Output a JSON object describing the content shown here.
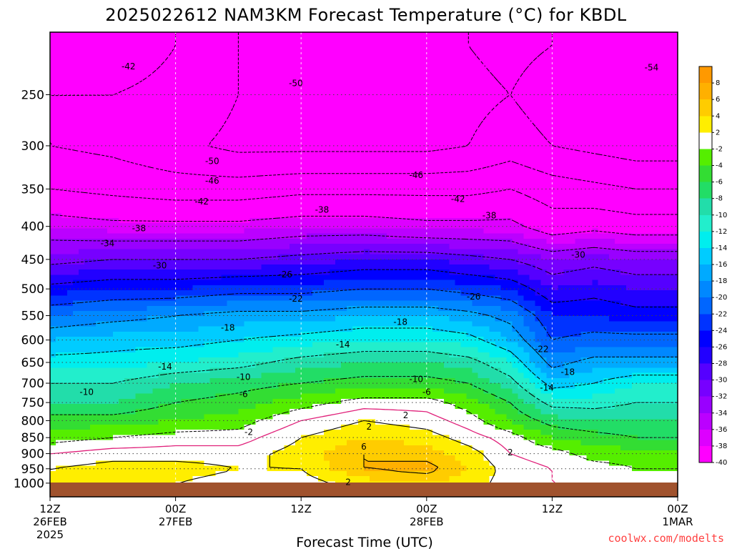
{
  "chart_data": {
    "type": "heatmap",
    "title": "2025022612 NAM3KM Forecast Temperature (°C) for KBDL",
    "xlabel": "Forecast Time (UTC)",
    "ylabel": "",
    "credit": "coolwx.com/modelts",
    "y_ticks": [
      250,
      300,
      350,
      400,
      450,
      500,
      550,
      600,
      650,
      700,
      750,
      800,
      850,
      900,
      950,
      1000
    ],
    "y_scale": "log",
    "x_ticks": [
      {
        "hour": 0,
        "line1": "12Z",
        "line2": "26FEB",
        "line3": "2025"
      },
      {
        "hour": 12,
        "line1": "00Z",
        "line2": "27FEB",
        "line3": ""
      },
      {
        "hour": 24,
        "line1": "12Z",
        "line2": "",
        "line3": ""
      },
      {
        "hour": 36,
        "line1": "00Z",
        "line2": "28FEB",
        "line3": ""
      },
      {
        "hour": 48,
        "line1": "12Z",
        "line2": "",
        "line3": ""
      },
      {
        "hour": 60,
        "line1": "00Z",
        "line2": "1MAR",
        "line3": ""
      }
    ],
    "xlim": [
      0,
      60
    ],
    "ylim": [
      200,
      1050
    ],
    "colorbar": {
      "labels": [
        "8",
        "6",
        "4",
        "2",
        "-2",
        "-4",
        "-6",
        "-8",
        "-10",
        "-12",
        "-14",
        "-16",
        "-18",
        "-20",
        "-22",
        "-24",
        "-26",
        "-28",
        "-30",
        "-32",
        "-34",
        "-36",
        "-38",
        "-40"
      ],
      "colors": [
        "#ff9900",
        "#ffb000",
        "#ffcc00",
        "#ffee00",
        "#ffffff",
        "#55ee00",
        "#33dd33",
        "#22dd66",
        "#22ddaa",
        "#22eecc",
        "#00eeee",
        "#00ccff",
        "#00aaff",
        "#0088ff",
        "#0066ff",
        "#0033ff",
        "#0000ff",
        "#2200ff",
        "#5500ff",
        "#7700ff",
        "#9900ff",
        "#bb00ff",
        "#dd00ff",
        "#ff00ff"
      ]
    },
    "profile": {
      "levels": [
        210,
        250,
        300,
        350,
        400,
        450,
        500,
        550,
        600,
        650,
        700,
        750,
        800,
        850,
        900,
        950,
        1000
      ],
      "times": [
        0,
        6,
        12,
        18,
        24,
        30,
        36,
        40,
        44,
        48,
        52,
        56,
        60
      ],
      "temps": [
        [
          -44,
          -44,
          -46,
          -50,
          -52,
          -52,
          -51,
          -50,
          -49,
          -50,
          -52,
          -54,
          -54
        ],
        [
          -46,
          -46,
          -47,
          -50,
          -52,
          -52,
          -52,
          -51,
          -50,
          -52,
          -53,
          -54,
          -54
        ],
        [
          -46,
          -47,
          -49,
          -51,
          -51,
          -51,
          -51,
          -50,
          -48,
          -50,
          -51,
          -52,
          -52
        ],
        [
          -42,
          -43,
          -44,
          -44,
          -43,
          -43,
          -43,
          -43,
          -42,
          -44,
          -45,
          -46,
          -46
        ],
        [
          -36,
          -37,
          -37,
          -37,
          -36,
          -36,
          -37,
          -37,
          -37,
          -40,
          -39,
          -40,
          -40
        ],
        [
          -31,
          -30,
          -30,
          -30,
          -29,
          -28,
          -28,
          -29,
          -30,
          -32,
          -31,
          -32,
          -32
        ],
        [
          -25,
          -24,
          -24,
          -23,
          -23,
          -22,
          -22,
          -23,
          -24,
          -28,
          -27,
          -28,
          -28
        ],
        [
          -20,
          -19,
          -18,
          -17,
          -17,
          -16,
          -16,
          -17,
          -19,
          -24,
          -24,
          -25,
          -25
        ],
        [
          -16,
          -15,
          -15,
          -14,
          -13,
          -12,
          -12,
          -13,
          -16,
          -22,
          -21,
          -21,
          -21
        ],
        [
          -13,
          -13,
          -12,
          -11,
          -9,
          -8,
          -8,
          -9,
          -12,
          -19,
          -17,
          -17,
          -17
        ],
        [
          -10,
          -10,
          -8,
          -7,
          -6,
          -5,
          -5,
          -6,
          -9,
          -15,
          -14,
          -12,
          -12
        ],
        [
          -8,
          -8,
          -6,
          -5,
          -3,
          -1,
          -1,
          -3,
          -6,
          -11,
          -11,
          -10,
          -10
        ],
        [
          -5,
          -5,
          -4,
          -3,
          0,
          2,
          1,
          -1,
          -4,
          -7,
          -8,
          -8,
          -8
        ],
        [
          -3,
          -2,
          -1,
          -1,
          2,
          4,
          3,
          1,
          -1,
          -4,
          -5,
          -6,
          -6
        ],
        [
          0,
          1,
          1,
          1,
          3,
          6,
          5,
          3,
          0,
          -1,
          -3,
          -3,
          -3
        ],
        [
          2,
          3,
          3,
          2,
          2,
          6,
          7,
          4,
          1,
          0,
          -1,
          -2,
          -2
        ],
        [
          3,
          3,
          2,
          1,
          1,
          3,
          4,
          3,
          1,
          0,
          0,
          -1,
          -1
        ]
      ]
    },
    "contour_labels": [
      {
        "t": 7.5,
        "p": 226,
        "text": "-42"
      },
      {
        "t": 23.5,
        "p": 240,
        "text": "-50"
      },
      {
        "t": 57.5,
        "p": 227,
        "text": "-54"
      },
      {
        "t": 15.5,
        "p": 317,
        "text": "-50"
      },
      {
        "t": 15.5,
        "p": 340,
        "text": "-46"
      },
      {
        "t": 35.0,
        "p": 333,
        "text": "-46"
      },
      {
        "t": 14.5,
        "p": 366,
        "text": "-42"
      },
      {
        "t": 39.0,
        "p": 363,
        "text": "-42"
      },
      {
        "t": 26.0,
        "p": 377,
        "text": "-38"
      },
      {
        "t": 42.0,
        "p": 385,
        "text": "-38"
      },
      {
        "t": 8.5,
        "p": 403,
        "text": "-38"
      },
      {
        "t": 5.5,
        "p": 425,
        "text": "-34"
      },
      {
        "t": 10.5,
        "p": 460,
        "text": "-30"
      },
      {
        "t": 50.5,
        "p": 443,
        "text": "-30"
      },
      {
        "t": 22.5,
        "p": 475,
        "text": "-26"
      },
      {
        "t": 40.5,
        "p": 514,
        "text": "-26"
      },
      {
        "t": 23.5,
        "p": 518,
        "text": "-22"
      },
      {
        "t": 17.0,
        "p": 574,
        "text": "-18"
      },
      {
        "t": 33.5,
        "p": 563,
        "text": "-18"
      },
      {
        "t": 28.0,
        "p": 610,
        "text": "-14"
      },
      {
        "t": 11.0,
        "p": 660,
        "text": "-14"
      },
      {
        "t": 47.0,
        "p": 620,
        "text": "-22"
      },
      {
        "t": 49.5,
        "p": 673,
        "text": "-18"
      },
      {
        "t": 18.5,
        "p": 685,
        "text": "-10"
      },
      {
        "t": 35.0,
        "p": 690,
        "text": "-10"
      },
      {
        "t": 3.5,
        "p": 723,
        "text": "-10"
      },
      {
        "t": 47.5,
        "p": 712,
        "text": "-14"
      },
      {
        "t": 18.5,
        "p": 728,
        "text": "-6"
      },
      {
        "t": 36.0,
        "p": 723,
        "text": "-6"
      },
      {
        "t": 34.0,
        "p": 785,
        "text": "2"
      },
      {
        "t": 19.0,
        "p": 833,
        "text": "-2"
      },
      {
        "t": 30.5,
        "p": 818,
        "text": "2"
      },
      {
        "t": 30.0,
        "p": 878,
        "text": "6"
      },
      {
        "t": 44.0,
        "p": 896,
        "text": "2"
      },
      {
        "t": 28.5,
        "p": 997,
        "text": "2"
      }
    ]
  }
}
